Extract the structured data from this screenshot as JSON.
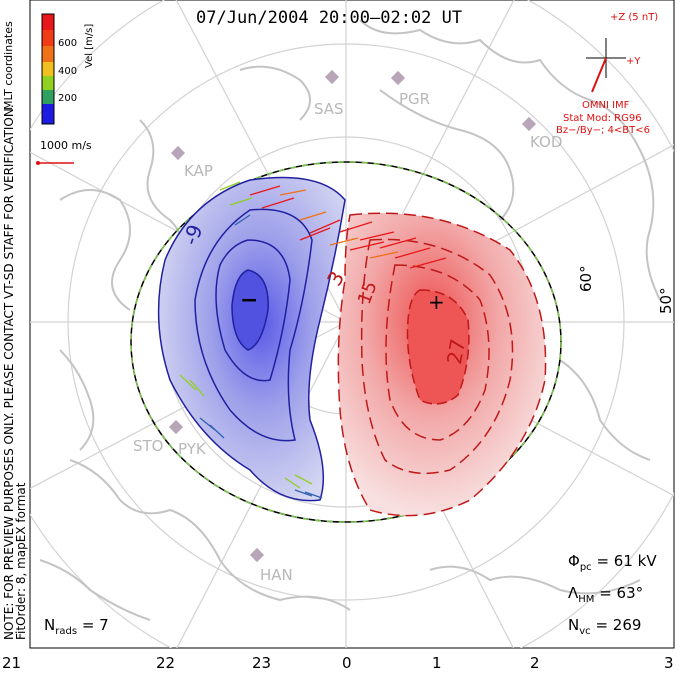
{
  "title": "07/Jun/2004 20:00–02:02 UT",
  "colorbar": {
    "label": "Vel [m/s]",
    "ticks": [
      "600",
      "400",
      "200"
    ],
    "colors": [
      "#e8181a",
      "#f07018",
      "#f0c020",
      "#90d020",
      "#30a060",
      "#3060b0",
      "#1c1ce0"
    ]
  },
  "coords_label": "MLT coordinates",
  "scale_vector": "1000 m/s",
  "imf": {
    "z_label": "+Z (5 nT)",
    "y_label": "+Y",
    "source": "OMNI IMF",
    "stat_mod": "Stat Mod: RG96",
    "condition": "Bz−/By−; 4<BT<6"
  },
  "stations": [
    "SAS",
    "PGR",
    "KOD",
    "KAP",
    "STO",
    "PYK",
    "HAN"
  ],
  "latitude_labels": [
    "60°",
    "50°"
  ],
  "contour_labels": [
    "-9",
    "3",
    "15",
    "27"
  ],
  "center_markers": {
    "min": "−",
    "max": "+"
  },
  "mlt_labels": [
    "21",
    "22",
    "23",
    "0",
    "1",
    "2",
    "3"
  ],
  "note": "NOTE: FOR PREVIEW PURPOSES ONLY. PLEASE CONTACT VT-SD STAFF FOR VERIFICATION.",
  "fitorder": "FitOrder: 8, mapEX format",
  "stats": {
    "phi_pc": {
      "sym": "Φ",
      "sub": "pc",
      "value": "= 61 kV"
    },
    "lambda_hm": {
      "sym": "Λ",
      "sub": "HM",
      "value": "= 63°"
    },
    "n_vc": {
      "sym": "N",
      "sub": "vc",
      "value": "= 269"
    },
    "n_rads": {
      "sym": "N",
      "sub": "rads",
      "value": "= 7"
    }
  },
  "colors": {
    "positive": "#e03030",
    "negative": "#3030c0",
    "boundary": "#7ac24a",
    "annotation": "#e01010",
    "coastline": "#c4c4c4"
  }
}
